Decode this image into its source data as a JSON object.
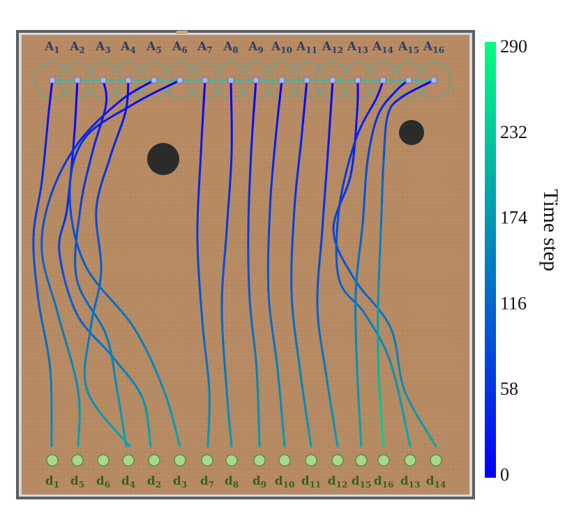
{
  "agents": [
    {
      "main": "A",
      "sub": "1"
    },
    {
      "main": "A",
      "sub": "2"
    },
    {
      "main": "A",
      "sub": "3"
    },
    {
      "main": "A",
      "sub": "4"
    },
    {
      "main": "A",
      "sub": "5"
    },
    {
      "main": "A",
      "sub": "6"
    },
    {
      "main": "A",
      "sub": "7"
    },
    {
      "main": "A",
      "sub": "8"
    },
    {
      "main": "A",
      "sub": "9"
    },
    {
      "main": "A",
      "sub": "10"
    },
    {
      "main": "A",
      "sub": "11"
    },
    {
      "main": "A",
      "sub": "12"
    },
    {
      "main": "A",
      "sub": "13"
    },
    {
      "main": "A",
      "sub": "14"
    },
    {
      "main": "A",
      "sub": "15"
    },
    {
      "main": "A",
      "sub": "16"
    }
  ],
  "goals": [
    {
      "main": "d",
      "sub": "1"
    },
    {
      "main": "d",
      "sub": "5"
    },
    {
      "main": "d",
      "sub": "6"
    },
    {
      "main": "d",
      "sub": "4"
    },
    {
      "main": "d",
      "sub": "2"
    },
    {
      "main": "d",
      "sub": "3"
    },
    {
      "main": "d",
      "sub": "7"
    },
    {
      "main": "d",
      "sub": "8"
    },
    {
      "main": "d",
      "sub": "9"
    },
    {
      "main": "d",
      "sub": "10"
    },
    {
      "main": "d",
      "sub": "11"
    },
    {
      "main": "d",
      "sub": "12"
    },
    {
      "main": "d",
      "sub": "15"
    },
    {
      "main": "d",
      "sub": "16"
    },
    {
      "main": "d",
      "sub": "13"
    },
    {
      "main": "d",
      "sub": "14"
    }
  ],
  "assignment": [
    0,
    4,
    5,
    3,
    1,
    2,
    6,
    7,
    8,
    9,
    10,
    11,
    14,
    15,
    12,
    13
  ],
  "colorbar": {
    "title": "Time step",
    "ticks": [
      "290",
      "232",
      "174",
      "116",
      "58",
      "0"
    ],
    "color_low": "#0000ff",
    "color_high": "#00ff80"
  },
  "colors": {
    "floor": "#b68a63",
    "frame": "#5c5f63",
    "obstacle": "#2b2b2b",
    "goal_fill": "#a8d88a",
    "goal_stroke": "#4f8a34",
    "agent_marker": "#a9b6ef",
    "sensor_ring": "#2fb8b0"
  }
}
